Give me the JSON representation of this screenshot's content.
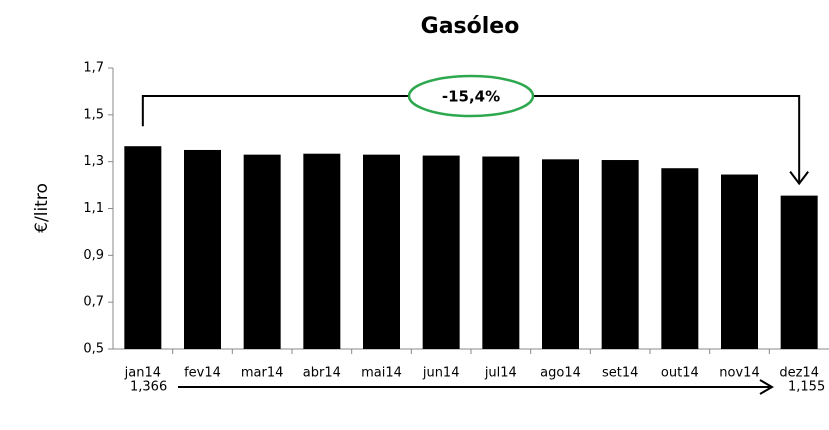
{
  "chart_data": {
    "type": "bar",
    "title": "Gasóleo",
    "y_label": "€/litro",
    "categories": [
      "jan14",
      "fev14",
      "mar14",
      "abr14",
      "mai14",
      "jun14",
      "jul14",
      "ago14",
      "set14",
      "out14",
      "nov14",
      "dez14"
    ],
    "values": [
      1.366,
      1.35,
      1.33,
      1.334,
      1.33,
      1.326,
      1.322,
      1.31,
      1.307,
      1.272,
      1.245,
      1.155
    ],
    "value_labels": [
      "1,366",
      null,
      null,
      null,
      null,
      null,
      null,
      null,
      null,
      null,
      null,
      "1,155"
    ],
    "color": "#000000",
    "ylim": [
      0.5,
      1.7
    ],
    "yticks": [
      {
        "value": 0.5,
        "label": "0,5"
      },
      {
        "value": 0.7,
        "label": "0,7"
      },
      {
        "value": 0.9,
        "label": "0,9"
      },
      {
        "value": 1.1,
        "label": "1,1"
      },
      {
        "value": 1.3,
        "label": "1,3"
      },
      {
        "value": 1.5,
        "label": "1,5"
      },
      {
        "value": 1.7,
        "label": "1,7"
      }
    ],
    "annotation": "-15,4%",
    "grid": false
  }
}
